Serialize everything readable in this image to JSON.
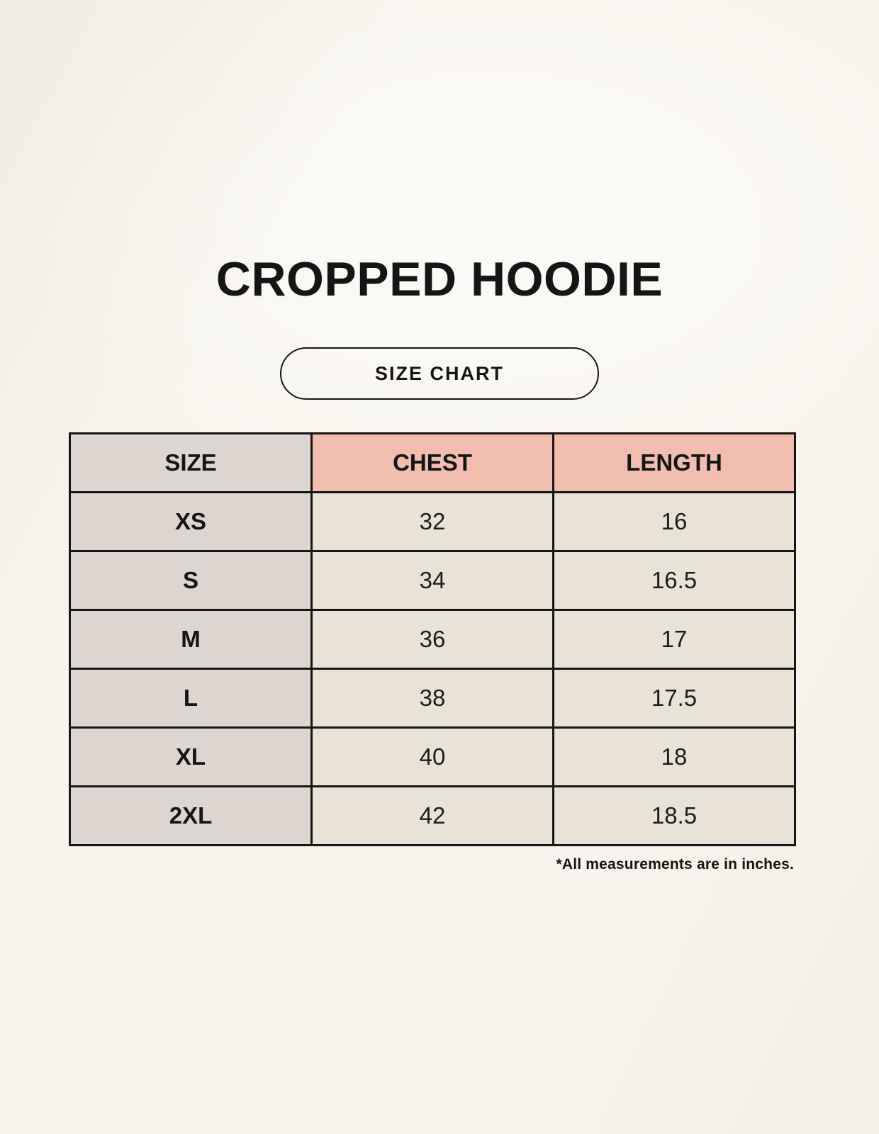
{
  "header": {
    "title": "CROPPED HOODIE",
    "size_chart_button": "SIZE CHART"
  },
  "chart_data": {
    "type": "table",
    "title": "CROPPED HOODIE",
    "columns": [
      "SIZE",
      "CHEST",
      "LENGTH"
    ],
    "rows": [
      [
        "XS",
        "32",
        "16"
      ],
      [
        "S",
        "34",
        "16.5"
      ],
      [
        "M",
        "36",
        "17"
      ],
      [
        "L",
        "38",
        "17.5"
      ],
      [
        "XL",
        "40",
        "18"
      ],
      [
        "2XL",
        "42",
        "18.5"
      ]
    ],
    "footnote": "*All measurements are in inches."
  },
  "colors": {
    "page_background": "#f8f5ee",
    "size_column_bg": "#ddd6d0",
    "header_accent_bg": "#f0bdae",
    "data_cell_bg": "#e9e2d6",
    "border": "#161616",
    "text": "#1a1a1a"
  }
}
